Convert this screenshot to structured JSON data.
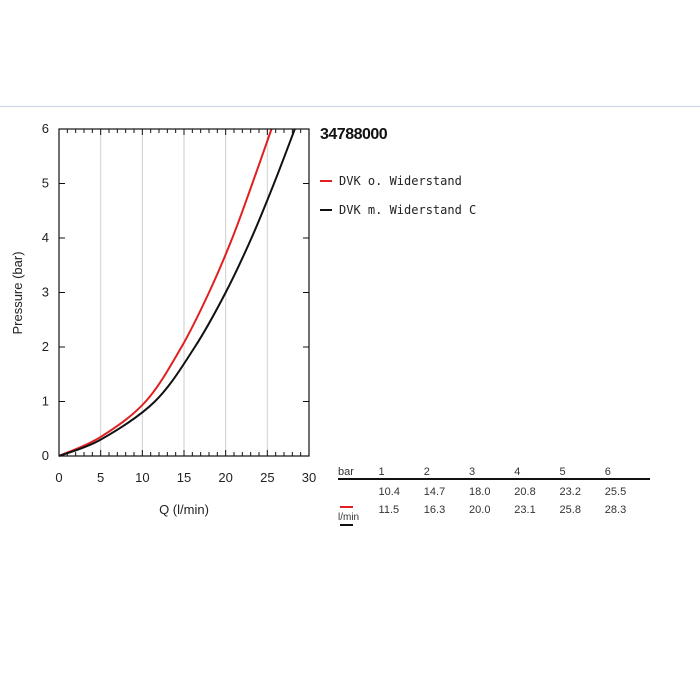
{
  "chart_data": {
    "type": "line",
    "title": "34788000",
    "xlabel": "Q (l/min)",
    "ylabel": "Pressure (bar)",
    "xlim": [
      0,
      30
    ],
    "ylim": [
      0,
      6
    ],
    "x_ticks": [
      "0",
      "5",
      "10",
      "15",
      "20",
      "25",
      "30"
    ],
    "y_ticks": [
      "0",
      "1",
      "2",
      "3",
      "4",
      "5",
      "6"
    ],
    "grid": true,
    "legend_position": "top-right",
    "series": [
      {
        "name": "DVK o. Widerstand",
        "color": "#e02020",
        "x": [
          0,
          5,
          10.4,
          14.7,
          18.0,
          20.8,
          23.2,
          25.5
        ],
        "y": [
          0,
          0.35,
          1,
          2,
          3,
          4,
          5,
          6
        ]
      },
      {
        "name": "DVK m. Widerstand C",
        "color": "#111111",
        "x": [
          0,
          5,
          11.5,
          16.3,
          20.0,
          23.1,
          25.8,
          28.3
        ],
        "y": [
          0,
          0.3,
          1,
          2,
          3,
          4,
          5,
          6
        ]
      }
    ]
  },
  "flow_table": {
    "header_label": "bar",
    "pressures": [
      "1",
      "2",
      "3",
      "4",
      "5",
      "6"
    ],
    "rows": [
      {
        "color": "#e02020",
        "values": [
          "10.4",
          "14.7",
          "18.0",
          "20.8",
          "23.2",
          "25.5"
        ]
      },
      {
        "color": "#111111",
        "values": [
          "11.5",
          "16.3",
          "20.0",
          "23.1",
          "25.8",
          "28.3"
        ]
      }
    ],
    "unit_label": "l/min"
  }
}
